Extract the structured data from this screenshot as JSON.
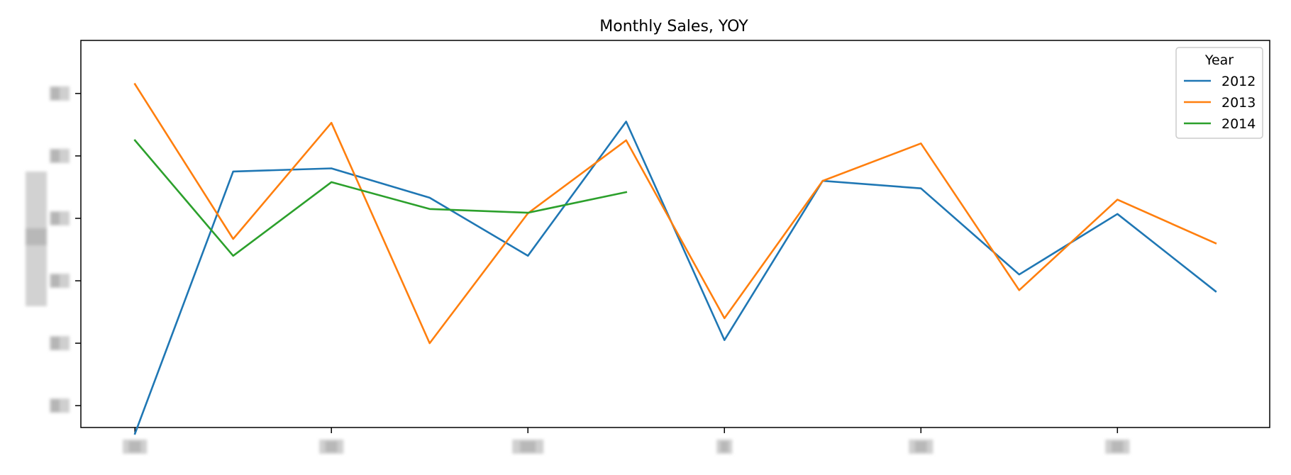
{
  "chart_data": {
    "type": "line",
    "title": "Monthly Sales, YOY",
    "xlabel": "",
    "ylabel": "",
    "x": [
      1,
      2,
      3,
      4,
      5,
      6,
      7,
      8,
      9,
      10,
      11,
      12
    ],
    "xlim": [
      0.45,
      12.55
    ],
    "ylim": [
      -0.35,
      5.85
    ],
    "x_ticks": [
      1,
      3,
      5,
      7,
      9,
      11
    ],
    "y_ticks": [
      0,
      1,
      2,
      3,
      4,
      5
    ],
    "tick_labels_obscured": true,
    "grid": false,
    "legend": {
      "title": "Year",
      "placement": "top-right"
    },
    "series": [
      {
        "name": "2012",
        "color": "#1f77b4",
        "values": [
          -0.45,
          3.75,
          3.8,
          3.33,
          2.4,
          4.55,
          1.05,
          3.6,
          3.48,
          2.1,
          3.07,
          1.83
        ]
      },
      {
        "name": "2013",
        "color": "#ff7f0e",
        "values": [
          5.15,
          2.67,
          4.53,
          1.0,
          3.08,
          4.25,
          1.4,
          3.6,
          4.2,
          1.85,
          3.3,
          2.6
        ]
      },
      {
        "name": "2014",
        "color": "#2ca02c",
        "values": [
          4.25,
          2.4,
          3.58,
          3.15,
          3.09,
          3.42,
          null,
          null,
          null,
          null,
          null,
          null
        ]
      }
    ]
  }
}
